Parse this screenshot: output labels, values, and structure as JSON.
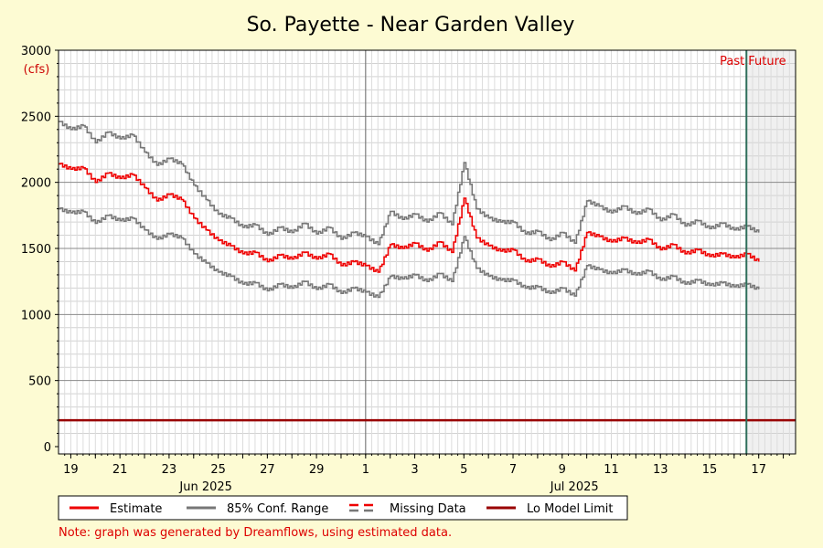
{
  "chart_data": {
    "type": "line",
    "title": "So. Payette - Near Garden Valley",
    "ylabel": "(cfs)",
    "ylim": [
      0,
      3000
    ],
    "yticks": [
      0,
      500,
      1000,
      1500,
      2000,
      2500,
      3000
    ],
    "xlim": [
      "2025-06-18T12:00",
      "2025-07-18T12:00"
    ],
    "day_ticks": [
      {
        "date": "2025-06-19",
        "label": "19"
      },
      {
        "date": "2025-06-21",
        "label": "21"
      },
      {
        "date": "2025-06-23",
        "label": "23"
      },
      {
        "date": "2025-06-25",
        "label": "25"
      },
      {
        "date": "2025-06-27",
        "label": "27"
      },
      {
        "date": "2025-06-29",
        "label": "29"
      },
      {
        "date": "2025-07-01",
        "label": "1"
      },
      {
        "date": "2025-07-03",
        "label": "3"
      },
      {
        "date": "2025-07-05",
        "label": "5"
      },
      {
        "date": "2025-07-07",
        "label": "7"
      },
      {
        "date": "2025-07-09",
        "label": "9"
      },
      {
        "date": "2025-07-11",
        "label": "11"
      },
      {
        "date": "2025-07-13",
        "label": "13"
      },
      {
        "date": "2025-07-15",
        "label": "15"
      },
      {
        "date": "2025-07-17",
        "label": "17"
      }
    ],
    "month_labels": [
      {
        "date": "2025-06-24T12:00",
        "label": "Jun 2025"
      },
      {
        "date": "2025-07-09T12:00",
        "label": "Jul 2025"
      }
    ],
    "month_start_line": "2025-07-01",
    "grid": true,
    "now_marker": {
      "date": "2025-07-16T12:00",
      "past_label": "Past",
      "future_label": "Future"
    },
    "series": [
      {
        "name": "Estimate",
        "color": "#ee0000",
        "x": [
          "2025-06-18T12:00",
          "2025-06-19T00:00",
          "2025-06-19T12:00",
          "2025-06-20T00:00",
          "2025-06-20T12:00",
          "2025-06-21T00:00",
          "2025-06-21T12:00",
          "2025-06-22T00:00",
          "2025-06-22T12:00",
          "2025-06-23T00:00",
          "2025-06-23T12:00",
          "2025-06-24T00:00",
          "2025-06-24T12:00",
          "2025-06-25T00:00",
          "2025-06-25T12:00",
          "2025-06-26T00:00",
          "2025-06-26T12:00",
          "2025-06-27T00:00",
          "2025-06-27T12:00",
          "2025-06-28T00:00",
          "2025-06-28T12:00",
          "2025-06-29T00:00",
          "2025-06-29T12:00",
          "2025-06-30T00:00",
          "2025-06-30T12:00",
          "2025-07-01T00:00",
          "2025-07-01T12:00",
          "2025-07-02T00:00",
          "2025-07-02T12:00",
          "2025-07-03T00:00",
          "2025-07-03T12:00",
          "2025-07-04T00:00",
          "2025-07-04T12:00",
          "2025-07-05T00:00",
          "2025-07-05T12:00",
          "2025-07-06T00:00",
          "2025-07-06T12:00",
          "2025-07-07T00:00",
          "2025-07-07T12:00",
          "2025-07-08T00:00",
          "2025-07-08T12:00",
          "2025-07-09T00:00",
          "2025-07-09T12:00",
          "2025-07-10T00:00",
          "2025-07-10T12:00",
          "2025-07-11T00:00",
          "2025-07-11T12:00",
          "2025-07-12T00:00",
          "2025-07-12T12:00",
          "2025-07-13T00:00",
          "2025-07-13T12:00",
          "2025-07-14T00:00",
          "2025-07-14T12:00",
          "2025-07-15T00:00",
          "2025-07-15T12:00",
          "2025-07-16T00:00",
          "2025-07-16T12:00",
          "2025-07-17T00:00"
        ],
        "y": [
          2140,
          2100,
          2110,
          2000,
          2070,
          2030,
          2060,
          1960,
          1860,
          1910,
          1870,
          1730,
          1640,
          1560,
          1520,
          1460,
          1470,
          1400,
          1450,
          1420,
          1470,
          1420,
          1460,
          1370,
          1400,
          1370,
          1320,
          1530,
          1500,
          1540,
          1480,
          1550,
          1470,
          1880,
          1580,
          1520,
          1480,
          1490,
          1400,
          1420,
          1360,
          1400,
          1330,
          1620,
          1590,
          1550,
          1580,
          1540,
          1570,
          1490,
          1530,
          1460,
          1490,
          1440,
          1460,
          1430,
          1460,
          1400
        ]
      },
      {
        "name": "85% Conf. Range",
        "color": "#777777",
        "x": [
          "2025-06-18T12:00",
          "2025-06-19T00:00",
          "2025-06-19T12:00",
          "2025-06-20T00:00",
          "2025-06-20T12:00",
          "2025-06-21T00:00",
          "2025-06-21T12:00",
          "2025-06-22T00:00",
          "2025-06-22T12:00",
          "2025-06-23T00:00",
          "2025-06-23T12:00",
          "2025-06-24T00:00",
          "2025-06-24T12:00",
          "2025-06-25T00:00",
          "2025-06-25T12:00",
          "2025-06-26T00:00",
          "2025-06-26T12:00",
          "2025-06-27T00:00",
          "2025-06-27T12:00",
          "2025-06-28T00:00",
          "2025-06-28T12:00",
          "2025-06-29T00:00",
          "2025-06-29T12:00",
          "2025-06-30T00:00",
          "2025-06-30T12:00",
          "2025-07-01T00:00",
          "2025-07-01T12:00",
          "2025-07-02T00:00",
          "2025-07-02T12:00",
          "2025-07-03T00:00",
          "2025-07-03T12:00",
          "2025-07-04T00:00",
          "2025-07-04T12:00",
          "2025-07-05T00:00",
          "2025-07-05T12:00",
          "2025-07-06T00:00",
          "2025-07-06T12:00",
          "2025-07-07T00:00",
          "2025-07-07T12:00",
          "2025-07-08T00:00",
          "2025-07-08T12:00",
          "2025-07-09T00:00",
          "2025-07-09T12:00",
          "2025-07-10T00:00",
          "2025-07-10T12:00",
          "2025-07-11T00:00",
          "2025-07-11T12:00",
          "2025-07-12T00:00",
          "2025-07-12T12:00",
          "2025-07-13T00:00",
          "2025-07-13T12:00",
          "2025-07-14T00:00",
          "2025-07-14T12:00",
          "2025-07-15T00:00",
          "2025-07-15T12:00",
          "2025-07-16T00:00",
          "2025-07-16T12:00",
          "2025-07-17T00:00"
        ],
        "y_upper": [
          2460,
          2400,
          2430,
          2300,
          2380,
          2330,
          2360,
          2230,
          2130,
          2180,
          2140,
          1980,
          1870,
          1760,
          1730,
          1660,
          1680,
          1600,
          1660,
          1620,
          1690,
          1610,
          1660,
          1570,
          1620,
          1590,
          1530,
          1780,
          1720,
          1760,
          1700,
          1770,
          1680,
          2150,
          1800,
          1730,
          1700,
          1700,
          1610,
          1630,
          1560,
          1620,
          1540,
          1860,
          1820,
          1770,
          1820,
          1760,
          1800,
          1710,
          1760,
          1670,
          1710,
          1650,
          1690,
          1640,
          1670,
          1620
        ],
        "y_lower": [
          1800,
          1770,
          1780,
          1690,
          1750,
          1710,
          1730,
          1640,
          1570,
          1610,
          1580,
          1460,
          1390,
          1320,
          1290,
          1230,
          1240,
          1180,
          1230,
          1200,
          1250,
          1190,
          1230,
          1160,
          1200,
          1170,
          1130,
          1290,
          1270,
          1300,
          1250,
          1310,
          1250,
          1590,
          1350,
          1290,
          1260,
          1260,
          1200,
          1210,
          1160,
          1200,
          1140,
          1370,
          1340,
          1310,
          1340,
          1300,
          1330,
          1260,
          1290,
          1230,
          1260,
          1220,
          1240,
          1210,
          1230,
          1190
        ]
      }
    ],
    "reference_lines": [
      {
        "name": "Lo Model Limit",
        "y": 200,
        "color": "#990000"
      }
    ],
    "legend": {
      "placement": "bottom",
      "items": [
        {
          "label": "Estimate",
          "style": "solid",
          "color": "#ee0000"
        },
        {
          "label": "85% Conf. Range",
          "style": "solid",
          "color": "#777777"
        },
        {
          "label": "Missing Data",
          "style": "dashed",
          "colors": [
            "#ee0000",
            "#777777"
          ]
        },
        {
          "label": "Lo Model Limit",
          "style": "solid",
          "color": "#990000"
        }
      ]
    },
    "note": "Note: graph was generated by Dreamflows, using estimated data.",
    "colors": {
      "background": "#fdfbd3",
      "plot_background": "#ffffff",
      "future_shade": "#f0f0f0",
      "now_line": "#2e6e5a"
    }
  }
}
